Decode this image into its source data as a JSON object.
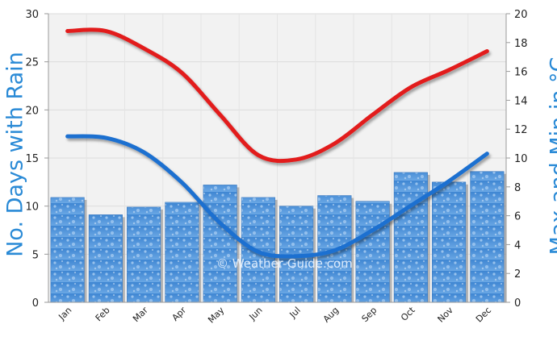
{
  "chart_data": {
    "type": "bar+line",
    "categories": [
      "Jan",
      "Feb",
      "Mar",
      "Apr",
      "May",
      "Jun",
      "Jul",
      "Aug",
      "Sep",
      "Oct",
      "Nov",
      "Dec"
    ],
    "rain_days": [
      10.9,
      9.1,
      9.9,
      10.4,
      12.2,
      10.9,
      10.0,
      11.1,
      10.5,
      13.5,
      12.5,
      13.6
    ],
    "max_temp": [
      18.8,
      18.8,
      17.6,
      15.9,
      13.0,
      10.2,
      9.9,
      11.0,
      13.0,
      14.9,
      16.1,
      17.4
    ],
    "min_temp": [
      11.5,
      11.4,
      10.4,
      8.3,
      5.5,
      3.5,
      3.2,
      3.6,
      5.0,
      6.7,
      8.4,
      10.3
    ],
    "ylabel_left": "No. Days with Rain",
    "ylabel_right": "Max and Min in °C",
    "ylim_left": [
      0,
      30
    ],
    "ylim_right": [
      0,
      20
    ],
    "yticks_left": [
      "0",
      "5",
      "10",
      "15",
      "20",
      "25",
      "30"
    ],
    "yticks_right": [
      "0",
      "2",
      "4",
      "6",
      "8",
      "10",
      "12",
      "14",
      "16",
      "18",
      "20"
    ],
    "grid": true,
    "colors": {
      "bars": "#4a8fd6",
      "max_line": "#e21b1b",
      "min_line": "#1e6fd0",
      "label": "#2a8ad6"
    }
  },
  "watermark": "© Weather-Guide.com"
}
